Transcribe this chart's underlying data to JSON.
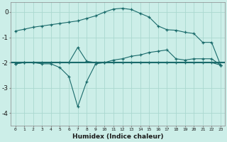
{
  "xlabel": "Humidex (Indice chaleur)",
  "background_color": "#cceee8",
  "line_color": "#1a6b6b",
  "grid_color": "#aad8d0",
  "x_values": [
    0,
    1,
    2,
    3,
    4,
    5,
    6,
    7,
    8,
    9,
    10,
    11,
    12,
    13,
    14,
    15,
    16,
    17,
    18,
    19,
    20,
    21,
    22,
    23
  ],
  "line1": [
    -0.75,
    -0.68,
    -0.6,
    -0.55,
    -0.5,
    -0.45,
    -0.4,
    -0.35,
    -0.25,
    -0.15,
    0.0,
    0.12,
    0.15,
    0.1,
    -0.05,
    -0.2,
    -0.55,
    -0.7,
    -0.72,
    -0.8,
    -0.85,
    -1.2,
    -1.2,
    -2.1
  ],
  "line2": [
    -2.05,
    -2.0,
    -2.0,
    -2.05,
    -2.05,
    -2.2,
    -2.55,
    -3.75,
    -2.75,
    -2.05,
    -2.0,
    -2.0,
    -2.0,
    -2.0,
    -2.0,
    -2.0,
    -2.0,
    -2.0,
    -2.0,
    -2.0,
    -2.0,
    -2.0,
    -2.0,
    -2.1
  ],
  "line3": [
    -2.05,
    -2.0,
    -2.0,
    -2.0,
    -2.0,
    -2.0,
    -2.0,
    -1.4,
    -1.95,
    -2.0,
    -2.0,
    -1.9,
    -1.85,
    -1.75,
    -1.7,
    -1.6,
    -1.55,
    -1.5,
    -1.85,
    -1.9,
    -1.85,
    -1.85,
    -1.85,
    -2.1
  ],
  "line_flat": -2.0,
  "ylim": [
    -4.5,
    0.4
  ],
  "yticks": [
    0,
    -1,
    -2,
    -3,
    -4
  ],
  "xlim": [
    -0.5,
    23.5
  ],
  "figsize": [
    3.2,
    2.0
  ],
  "dpi": 100
}
